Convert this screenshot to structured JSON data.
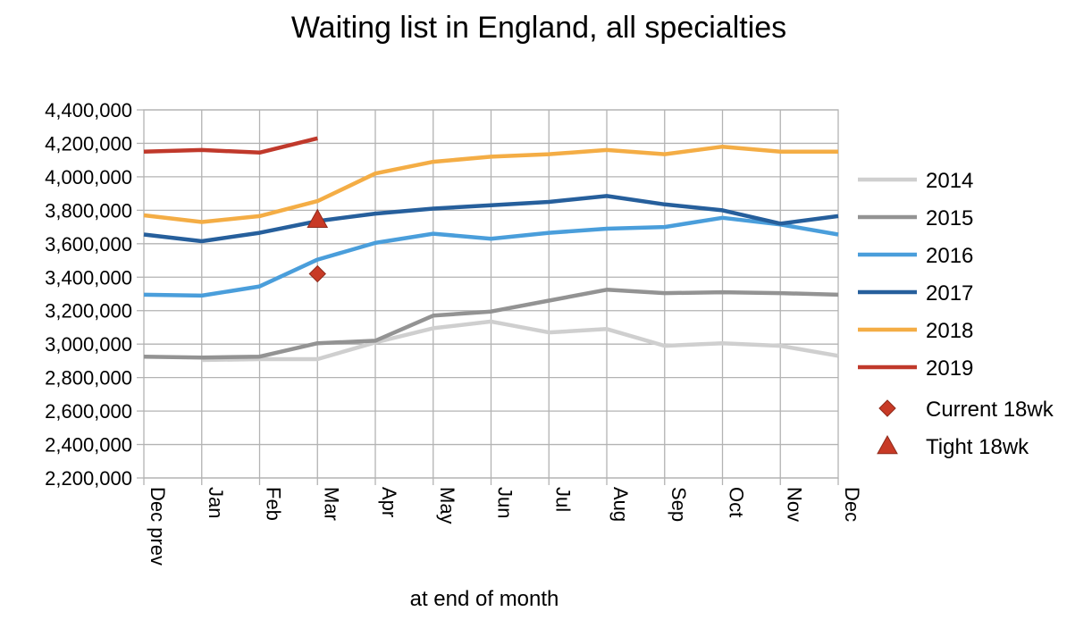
{
  "chart_data": {
    "type": "line",
    "title": "Waiting list in England, all specialties",
    "xlabel": "at end of month",
    "ylabel": "",
    "ylim": [
      2200000,
      4400000
    ],
    "yticks": [
      2200000,
      2400000,
      2600000,
      2800000,
      3000000,
      3200000,
      3400000,
      3600000,
      3800000,
      4000000,
      4200000,
      4400000
    ],
    "categories": [
      "Dec prev",
      "Jan",
      "Feb",
      "Mar",
      "Apr",
      "May",
      "Jun",
      "Jul",
      "Aug",
      "Sep",
      "Oct",
      "Nov",
      "Dec"
    ],
    "grid": true,
    "legend_position": "right",
    "series": [
      {
        "name": "2014",
        "color": "#cfcfcf",
        "values": [
          null,
          2905000,
          2910000,
          2910000,
          3010000,
          3095000,
          3135000,
          3070000,
          3090000,
          2990000,
          3005000,
          2990000,
          2930000
        ]
      },
      {
        "name": "2015",
        "color": "#939393",
        "values": [
          2925000,
          2920000,
          2925000,
          3005000,
          3020000,
          3170000,
          3195000,
          3260000,
          3325000,
          3305000,
          3310000,
          3305000,
          3295000
        ]
      },
      {
        "name": "2016",
        "color": "#4a9edb",
        "values": [
          3295000,
          3290000,
          3345000,
          3505000,
          3605000,
          3660000,
          3630000,
          3665000,
          3690000,
          3700000,
          3755000,
          3715000,
          3655000
        ]
      },
      {
        "name": "2017",
        "color": "#265f9c",
        "values": [
          3655000,
          3615000,
          3665000,
          3735000,
          3780000,
          3810000,
          3830000,
          3850000,
          3885000,
          3835000,
          3800000,
          3720000,
          3765000
        ]
      },
      {
        "name": "2018",
        "color": "#f4ad45",
        "values": [
          3770000,
          3730000,
          3765000,
          3855000,
          4020000,
          4090000,
          4120000,
          4135000,
          4160000,
          4135000,
          4180000,
          4150000,
          4150000
        ]
      },
      {
        "name": "2019",
        "color": "#c0392b",
        "values": [
          4150000,
          4160000,
          4145000,
          4230000,
          null,
          null,
          null,
          null,
          null,
          null,
          null,
          null,
          null
        ]
      }
    ],
    "markers": [
      {
        "name": "Current 18wk",
        "shape": "diamond",
        "color": "#c83a26",
        "category": "Mar",
        "value": 3420000
      },
      {
        "name": "Tight 18wk",
        "shape": "triangle",
        "color": "#c83a26",
        "category": "Mar",
        "value": 3745000
      }
    ]
  }
}
